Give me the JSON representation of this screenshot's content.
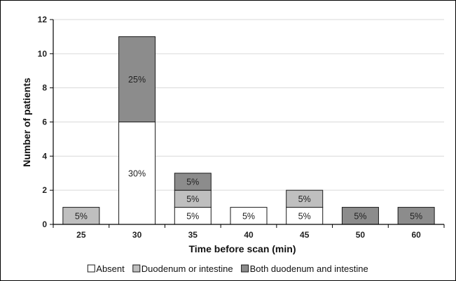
{
  "chart_data": {
    "type": "bar",
    "stacked": true,
    "categories": [
      "25",
      "30",
      "35",
      "40",
      "45",
      "50",
      "60"
    ],
    "xlabel": "Time before scan (min)",
    "ylabel": "Number of patients",
    "ylim": [
      0,
      12
    ],
    "yticks": [
      0,
      2,
      4,
      6,
      8,
      10,
      12
    ],
    "grid": true,
    "legend_position": "bottom",
    "series": [
      {
        "name": "Absent",
        "color": "#ffffff",
        "values": [
          0,
          6,
          1,
          1,
          1,
          0,
          0
        ],
        "labels": [
          "",
          "30%",
          "5%",
          "5%",
          "5%",
          "",
          ""
        ]
      },
      {
        "name": "Duodenum or intestine",
        "color": "#bfbfbf",
        "values": [
          1,
          0,
          1,
          0,
          1,
          0,
          0
        ],
        "labels": [
          "5%",
          "",
          "5%",
          "",
          "5%",
          "",
          ""
        ]
      },
      {
        "name": "Both duodenum and intestine",
        "color": "#8c8c8c",
        "values": [
          0,
          5,
          1,
          0,
          0,
          1,
          1
        ],
        "labels": [
          "",
          "25%",
          "5%",
          "",
          "",
          "5%",
          "5%"
        ]
      }
    ]
  }
}
